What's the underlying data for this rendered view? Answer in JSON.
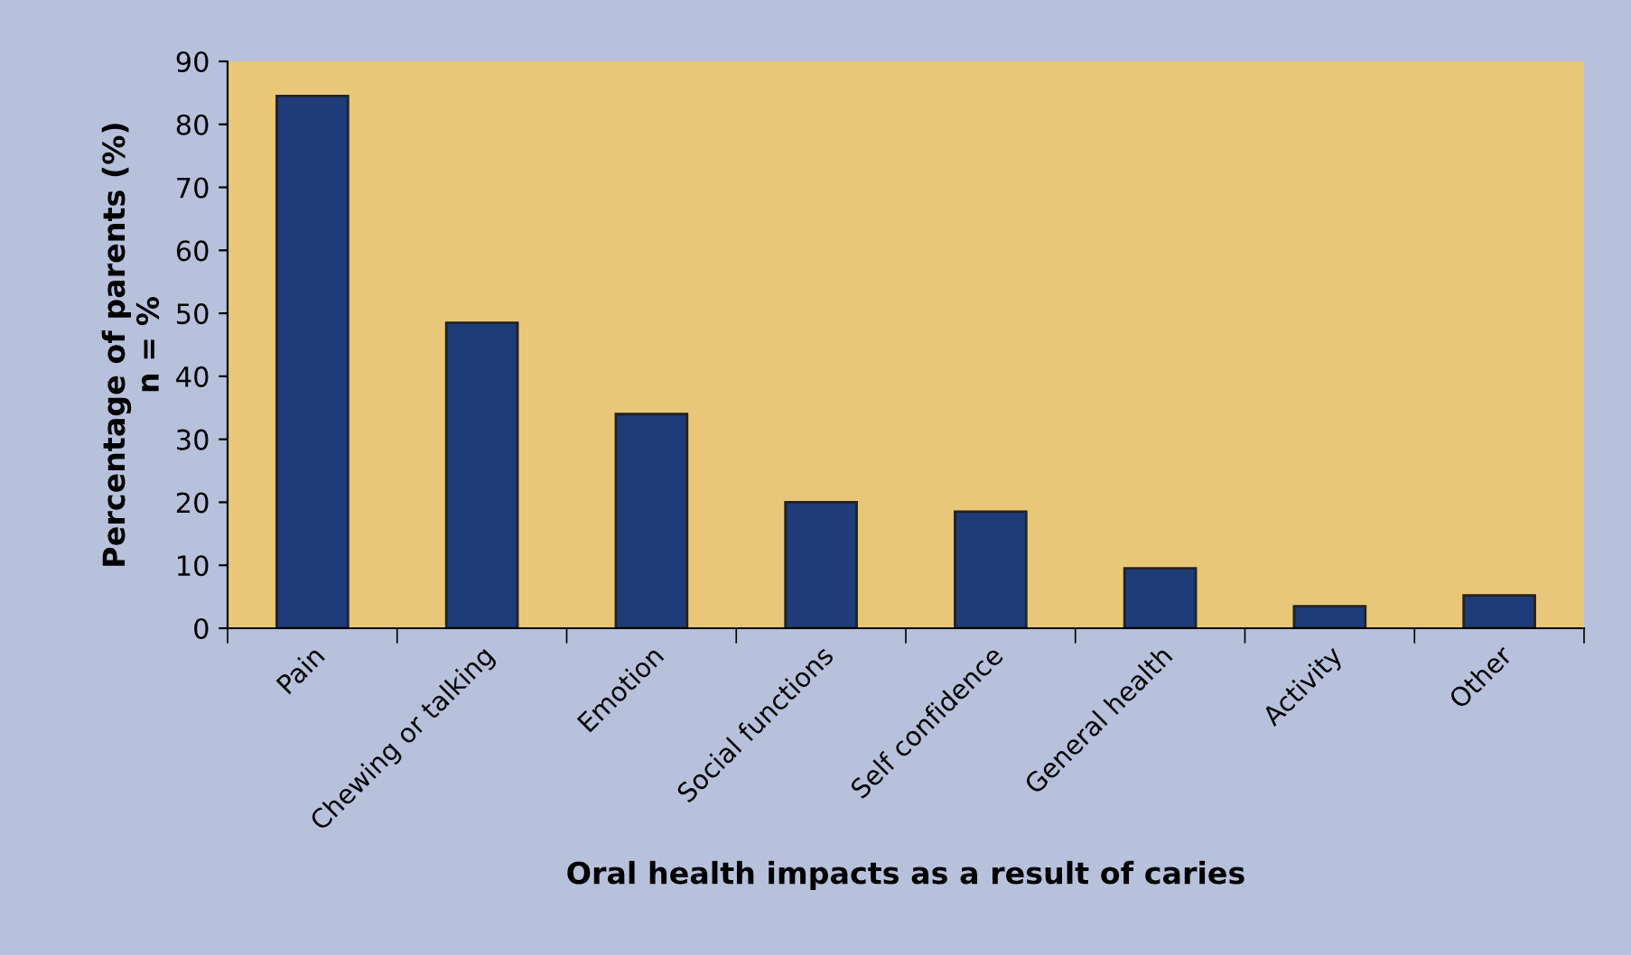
{
  "chart_data": {
    "type": "bar",
    "categories": [
      "Pain",
      "Chewing or talking",
      "Emotion",
      "Social functions",
      "Self confidence",
      "General health",
      "Activity",
      "Other"
    ],
    "values": [
      84.5,
      48.5,
      34,
      20,
      18.5,
      9.5,
      3.5,
      5.2
    ],
    "color": "#1f3c78",
    "xlabel": "Oral health impacts as a result of caries",
    "ylabel": "Percentage of parents (%)\nn = %",
    "ylim": [
      0,
      90
    ],
    "yticks": [
      0,
      10,
      20,
      30,
      40,
      50,
      60,
      70,
      80,
      90
    ],
    "grid": false,
    "legend": false
  }
}
